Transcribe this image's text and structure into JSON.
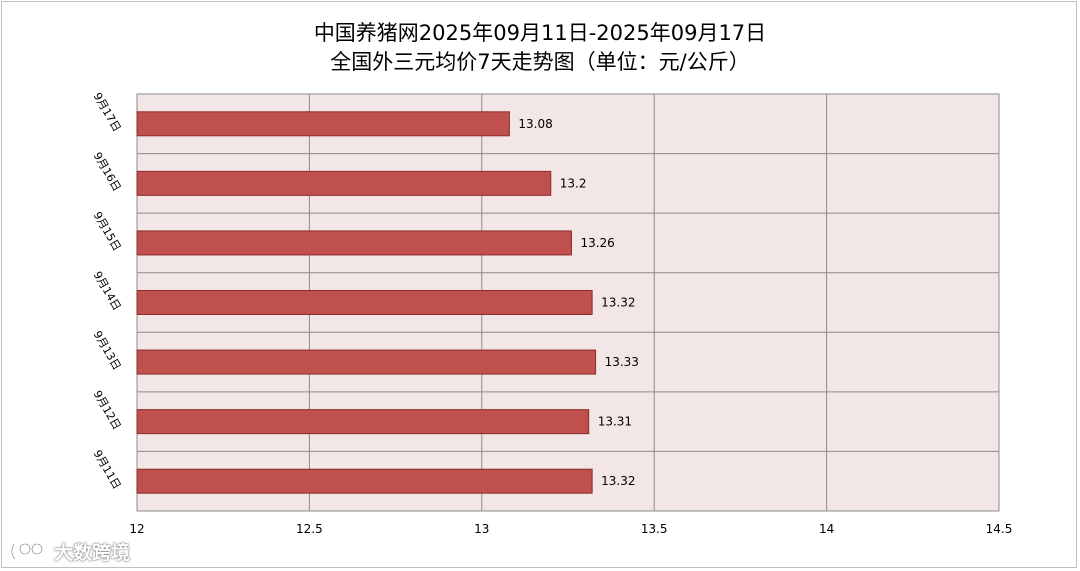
{
  "title": "中国养猪网2025年09月11日-2025年09月17日",
  "subtitle": "全国外三元均价7天走势图（单位：元/公斤）",
  "watermark": {
    "text": "大数跨境",
    "icon": "watermark-logo-icon"
  },
  "colors": {
    "bar_fill": "#c0504d",
    "bar_stroke": "#8c2d2a",
    "plot_bg": "#f2e6e6",
    "gridline": "#8c8c8c"
  },
  "chart_data": {
    "type": "bar",
    "orientation": "horizontal",
    "title": "中国养猪网2025年09月11日-2025年09月17日",
    "subtitle": "全国外三元均价7天走势图（单位：元/公斤）",
    "categories": [
      "9月17日",
      "9月16日",
      "9月15日",
      "9月14日",
      "9月13日",
      "9月12日",
      "9月11日"
    ],
    "values": [
      13.08,
      13.2,
      13.26,
      13.32,
      13.33,
      13.31,
      13.32
    ],
    "data_labels": [
      "13.08",
      "13.2",
      "13.26",
      "13.32",
      "13.33",
      "13.31",
      "13.32"
    ],
    "x_ticks": [
      "12",
      "12.5",
      "13",
      "13.5",
      "14",
      "14.5"
    ],
    "xlim": [
      12,
      14.5
    ],
    "grid": true,
    "legend": "none"
  }
}
